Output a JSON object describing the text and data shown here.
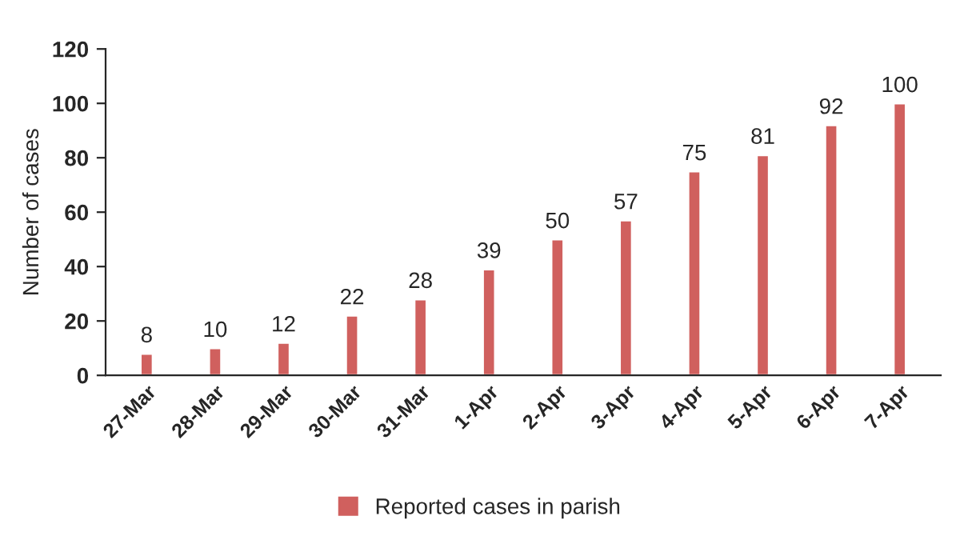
{
  "chart_data": {
    "type": "bar",
    "ylabel": "Number of cases",
    "categories": [
      "27-Mar",
      "28-Mar",
      "29-Mar",
      "30-Mar",
      "31-Mar",
      "1-Apr",
      "2-Apr",
      "3-Apr",
      "4-Apr",
      "5-Apr",
      "6-Apr",
      "7-Apr"
    ],
    "series": [
      {
        "name": "Reported cases in parish",
        "color": "#d0605e",
        "values": [
          8,
          10,
          12,
          22,
          28,
          39,
          50,
          57,
          75,
          81,
          92,
          100
        ]
      }
    ],
    "ylim": [
      0,
      120
    ],
    "yticks": [
      0,
      20,
      40,
      60,
      80,
      100,
      120
    ],
    "data_labels": true,
    "legend": "bottom",
    "grid": false
  }
}
